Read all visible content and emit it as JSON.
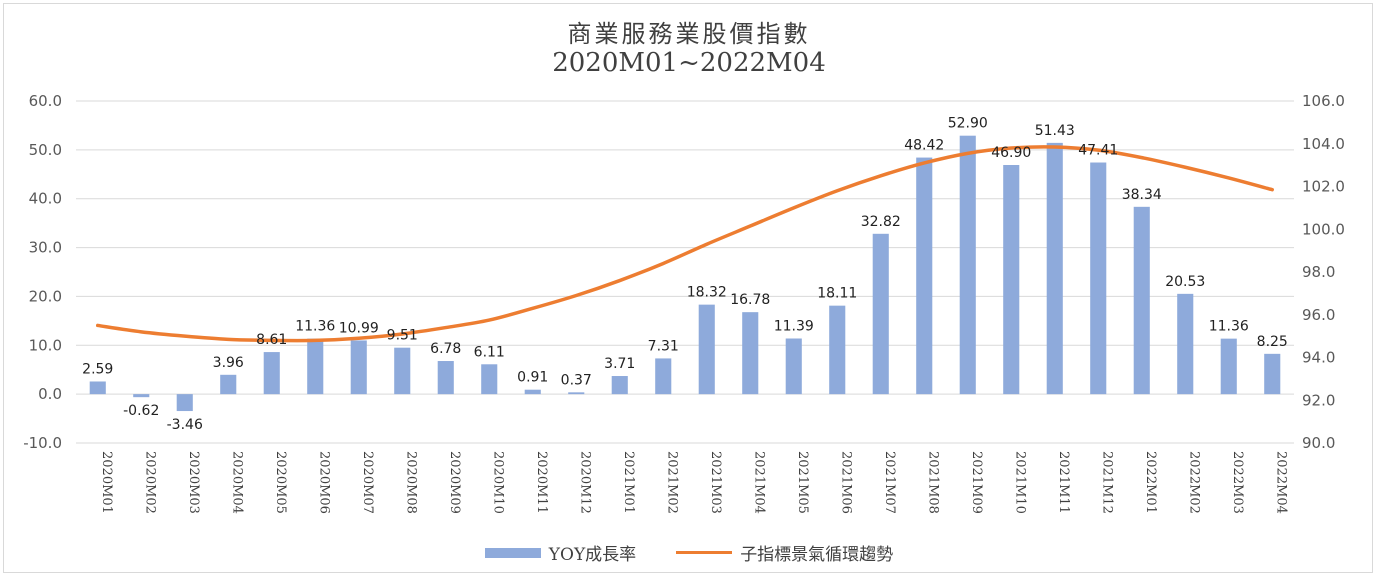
{
  "chart_data": {
    "type": "bar+line",
    "title": "商業服務業股價指數",
    "subtitle": "2020M01~2022M04",
    "categories": [
      "2020M01",
      "2020M02",
      "2020M03",
      "2020M04",
      "2020M05",
      "2020M06",
      "2020M07",
      "2020M08",
      "2020M09",
      "2020M10",
      "2020M11",
      "2020M12",
      "2021M01",
      "2021M02",
      "2021M03",
      "2021M04",
      "2021M05",
      "2021M06",
      "2021M07",
      "2021M08",
      "2021M09",
      "2021M10",
      "2021M11",
      "2021M12",
      "2022M01",
      "2022M02",
      "2022M03",
      "2022M04"
    ],
    "series": [
      {
        "name": "YOY成長率",
        "type": "bar",
        "axis": "left",
        "color": "#8eaadb",
        "values": [
          2.59,
          -0.62,
          -3.46,
          3.96,
          8.61,
          11.36,
          10.99,
          9.51,
          6.78,
          6.11,
          0.91,
          0.37,
          3.71,
          7.31,
          18.32,
          16.78,
          11.39,
          18.11,
          32.82,
          48.42,
          52.9,
          46.9,
          51.43,
          47.41,
          38.34,
          20.53,
          11.36,
          8.25
        ],
        "labels": [
          "2.59",
          "-0.62",
          "-3.46",
          "3.96",
          "8.61",
          "11.36",
          "10.99",
          "9.51",
          "6.78",
          "6.11",
          "0.91",
          "0.37",
          "3.71",
          "7.31",
          "18.32",
          "16.78",
          "11.39",
          "18.11",
          "32.82",
          "48.42",
          "52.90",
          "46.90",
          "51.43",
          "47.41",
          "38.34",
          "20.53",
          "11.36",
          "8.25"
        ]
      },
      {
        "name": "子指標景氣循環趨勢",
        "type": "line",
        "axis": "right",
        "color": "#ed7d31",
        "values": [
          95.5,
          95.2,
          95.0,
          94.85,
          94.8,
          94.8,
          94.9,
          95.1,
          95.4,
          95.75,
          96.3,
          96.9,
          97.6,
          98.4,
          99.3,
          100.15,
          101.0,
          101.8,
          102.5,
          103.1,
          103.55,
          103.8,
          103.85,
          103.7,
          103.35,
          102.9,
          102.4,
          101.85
        ]
      }
    ],
    "y_left": {
      "ylim": [
        -10,
        60
      ],
      "ticks": [
        "-10.0",
        "0.0",
        "10.0",
        "20.0",
        "30.0",
        "40.0",
        "50.0",
        "60.0"
      ]
    },
    "y_right": {
      "ylim": [
        90,
        106
      ],
      "ticks": [
        "90.0",
        "92.0",
        "94.0",
        "96.0",
        "98.0",
        "100.0",
        "102.0",
        "104.0",
        "106.0"
      ]
    },
    "grid": true,
    "legend": "bottom"
  }
}
